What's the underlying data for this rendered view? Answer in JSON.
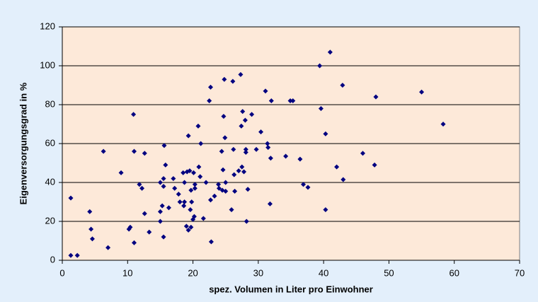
{
  "chart_data": {
    "type": "scatter",
    "x_label": "spez. Volumen in Liter pro Einwohner",
    "y_label": "Eigenversorgungsgrad in %",
    "color": "#000080",
    "grid": true,
    "xlim": [
      0,
      70
    ],
    "xticks": [
      0,
      10,
      20,
      30,
      40,
      50,
      60,
      70
    ],
    "ylim": [
      0,
      120
    ],
    "yticks": [
      0,
      20,
      40,
      60,
      80,
      100,
      120
    ],
    "x": [
      1.3,
      1.3,
      2.3,
      4.2,
      4.4,
      4.6,
      6.3,
      7,
      9,
      10.2,
      10.4,
      10.9,
      11,
      11,
      11.8,
      12.2,
      12.6,
      12.6,
      13.3,
      15,
      15,
      15,
      15.3,
      15.5,
      15.5,
      15.5,
      15.6,
      15.8,
      16.3,
      17,
      17.2,
      17.8,
      18,
      18.5,
      18.6,
      18.7,
      18.7,
      19,
      19.1,
      19.3,
      19.3,
      19.5,
      19.6,
      19.7,
      19.7,
      19.8,
      20,
      20.1,
      20.2,
      20.3,
      20.3,
      20.8,
      20.9,
      21.1,
      21.2,
      21.6,
      22,
      22.5,
      22.7,
      22.7,
      22.8,
      23.3,
      23.9,
      24,
      24.4,
      24.5,
      24.6,
      24.7,
      24.8,
      24.9,
      25,
      25,
      25.9,
      26.1,
      26.2,
      26.3,
      26.4,
      27,
      27.3,
      27.4,
      27.5,
      27.6,
      27.8,
      28,
      28.1,
      28.1,
      28.2,
      28.4,
      29,
      29.7,
      30.4,
      31.1,
      31.4,
      31.5,
      31.8,
      31.9,
      32,
      34.2,
      34.9,
      35.3,
      36.4,
      36.9,
      37.6,
      39.4,
      39.6,
      40.3,
      40.3,
      41,
      42,
      42.9,
      43,
      46,
      47.8,
      48,
      55,
      58.3
    ],
    "values": [
      32,
      2.5,
      2.5,
      25,
      16,
      11,
      56,
      6.5,
      45,
      16,
      17,
      75,
      56,
      9,
      39,
      37,
      55,
      24,
      14.5,
      40,
      25,
      20,
      28,
      38,
      42,
      12,
      59,
      49,
      27,
      42,
      37,
      34,
      30,
      45,
      28,
      30,
      40,
      17.5,
      45.5,
      64,
      15.5,
      46,
      26,
      36,
      17,
      30,
      21,
      45,
      22.5,
      37,
      39,
      69,
      48,
      43,
      60,
      21.5,
      40,
      82,
      89,
      31,
      9.5,
      33,
      39,
      37,
      56,
      36,
      46.5,
      74,
      93,
      63,
      40,
      35.5,
      26,
      92,
      57,
      44,
      35.5,
      46,
      95.5,
      69,
      48,
      76.5,
      45.5,
      72,
      55.5,
      57,
      20,
      36.5,
      75,
      57,
      66,
      87,
      60,
      58,
      29,
      52.5,
      82,
      53.5,
      82,
      82,
      52,
      39,
      37.5,
      100,
      78,
      65,
      26,
      107,
      48,
      90,
      41.5,
      55,
      49,
      84,
      86.5,
      70
    ]
  }
}
